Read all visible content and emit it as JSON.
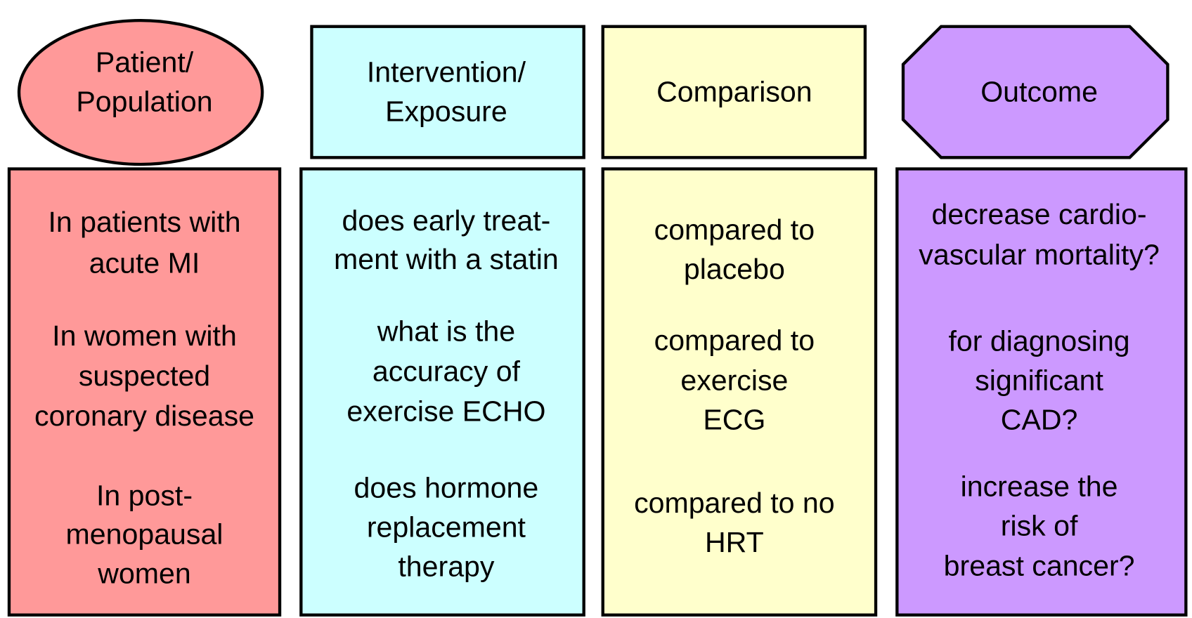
{
  "columns": [
    {
      "header": [
        "Patient/",
        "Population"
      ],
      "items": [
        [
          "In patients with",
          "acute MI"
        ],
        [
          "In women with",
          "suspected",
          "coronary disease"
        ],
        [
          "In post-",
          "menopausal",
          "women"
        ]
      ]
    },
    {
      "header": [
        "Intervention/",
        "Exposure"
      ],
      "items": [
        [
          "does early treat-",
          "ment with a statin"
        ],
        [
          "what is the",
          "accuracy of",
          "exercise ECHO"
        ],
        [
          "does hormone",
          "replacement",
          "therapy"
        ]
      ]
    },
    {
      "header": [
        "Comparison"
      ],
      "items": [
        [
          "compared to",
          "placebo"
        ],
        [
          "compared to",
          "exercise",
          "ECG"
        ],
        [
          "compared to no",
          "HRT"
        ]
      ]
    },
    {
      "header": [
        "Outcome"
      ],
      "items": [
        [
          "decrease cardio-",
          "vascular mortality?"
        ],
        [
          "for diagnosing",
          "significant",
          "CAD?"
        ],
        [
          "increase the",
          "risk of",
          "breast cancer?"
        ]
      ]
    }
  ]
}
